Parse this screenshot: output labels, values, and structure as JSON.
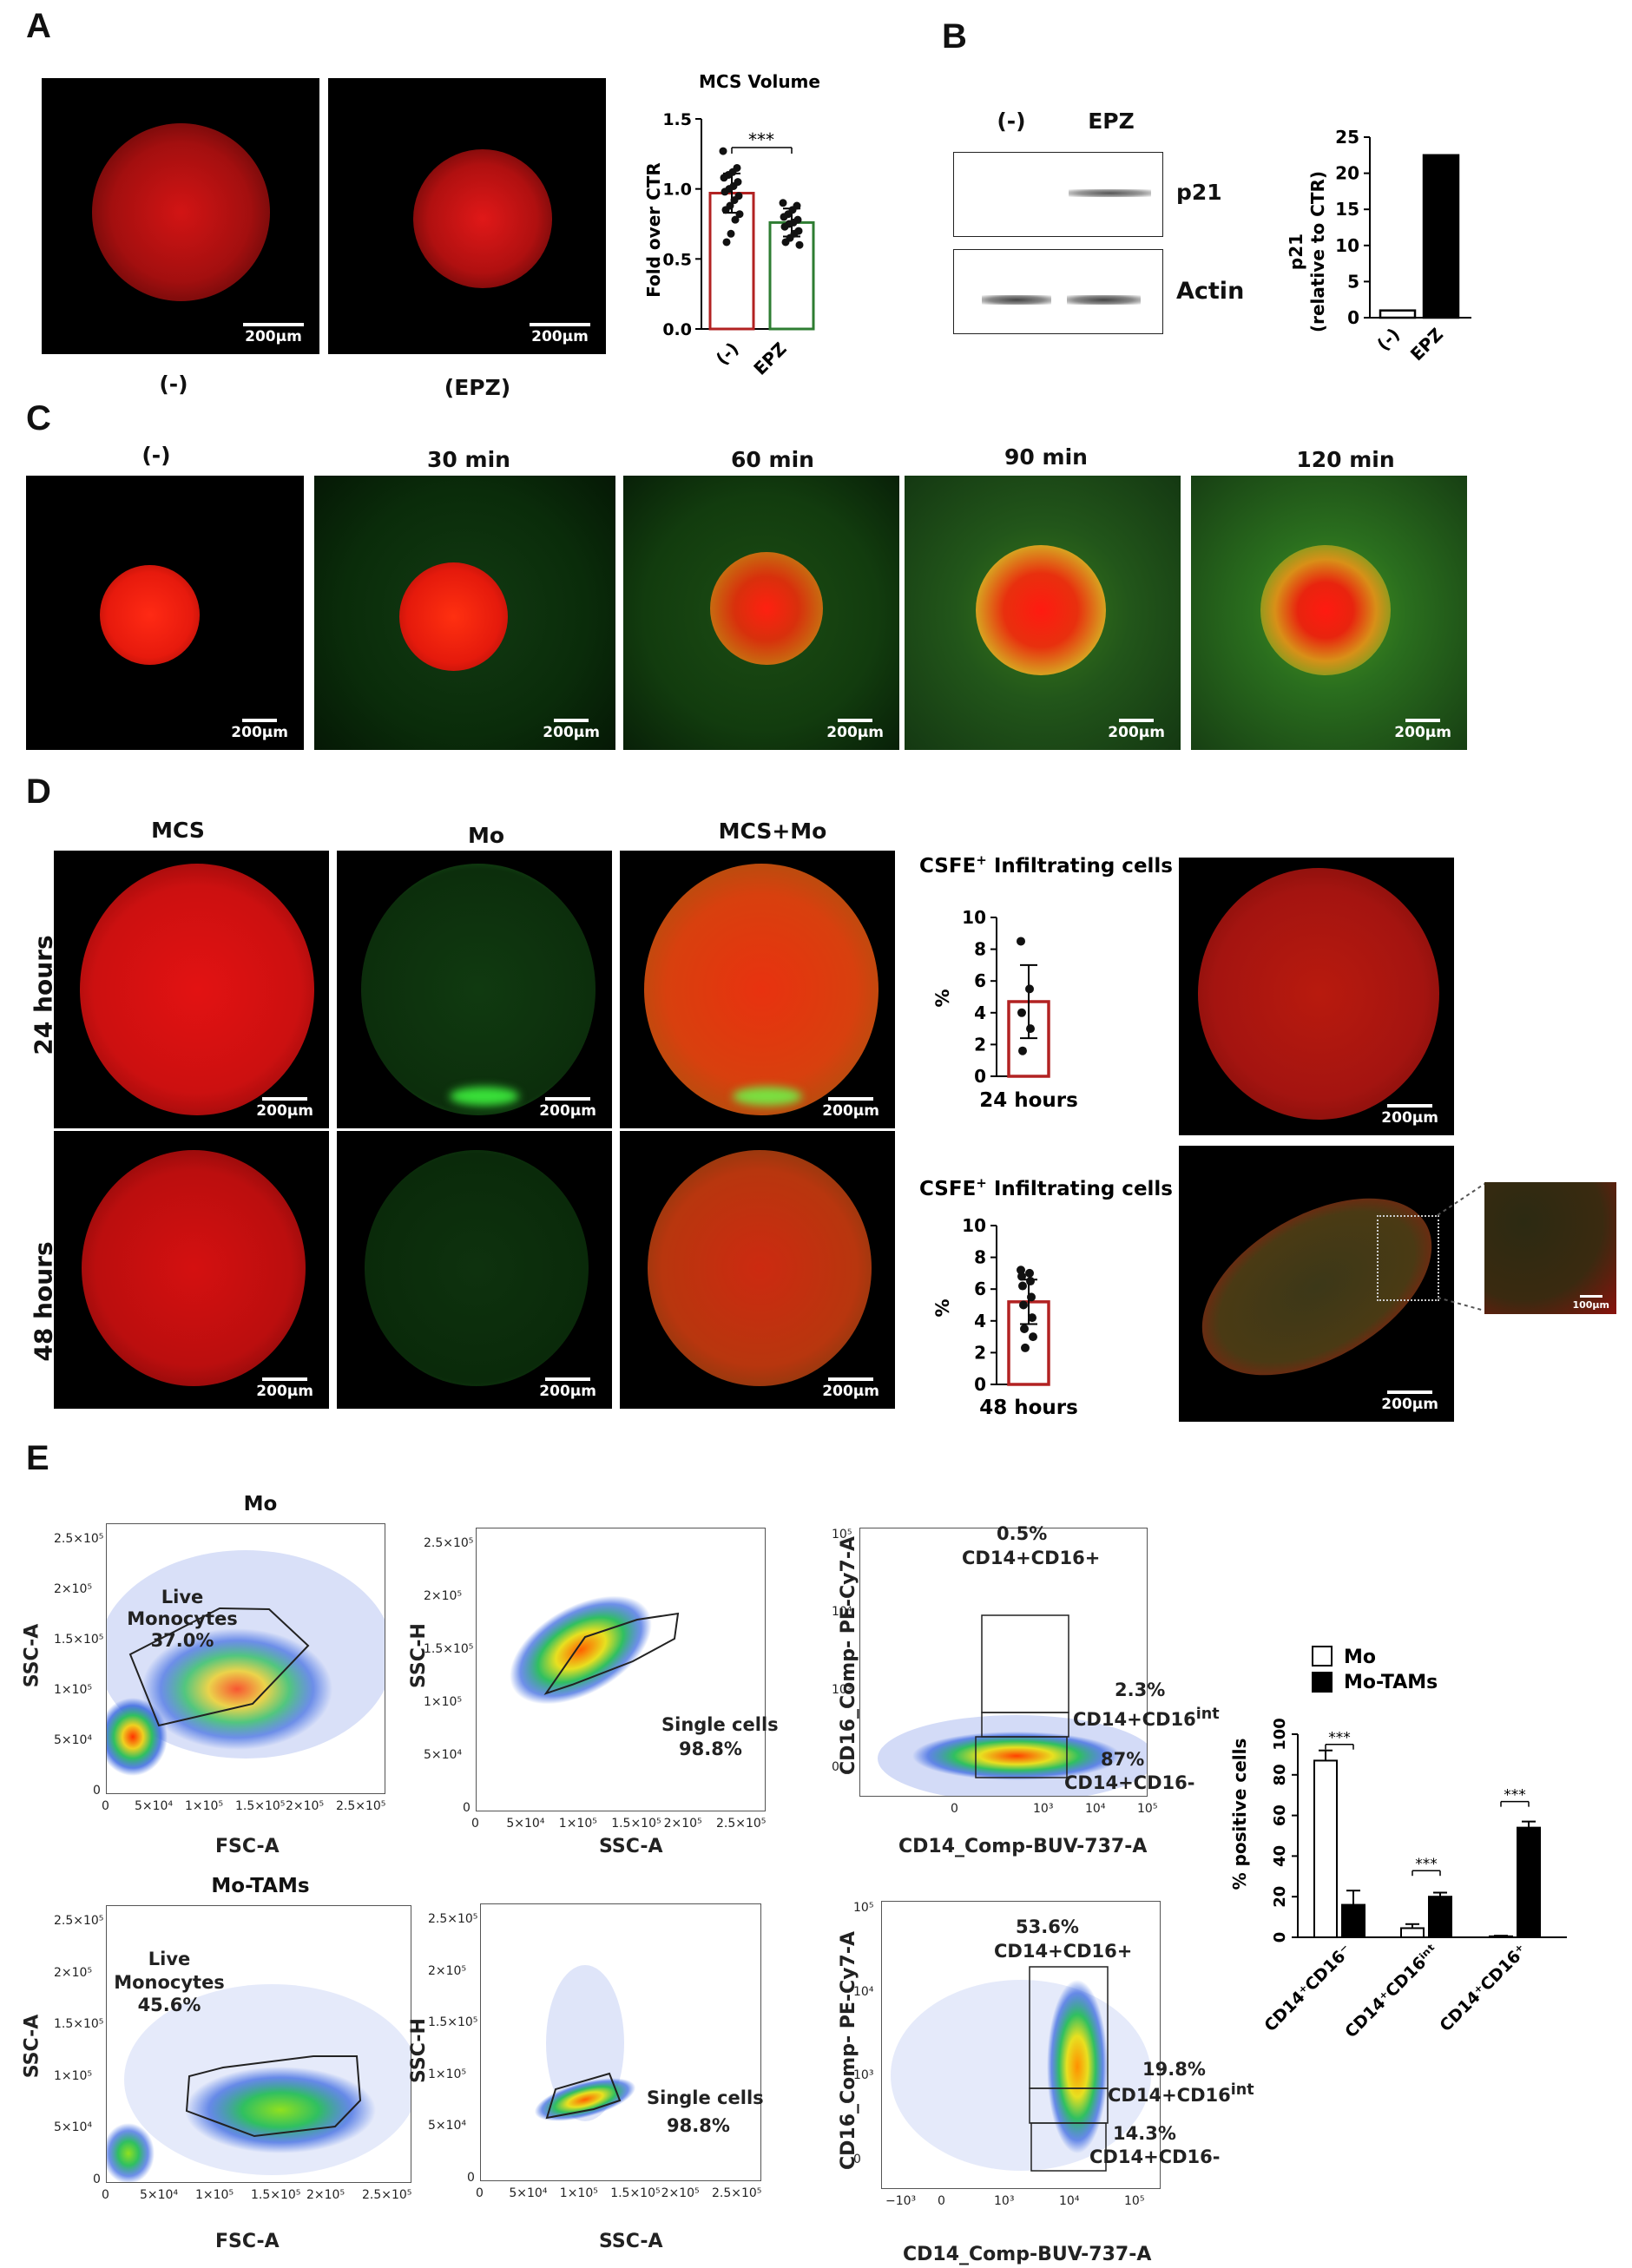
{
  "panels": {
    "a": "A",
    "b": "B",
    "c": "C",
    "d": "D",
    "e": "E"
  },
  "scale": {
    "s200": "200µm",
    "s100": "100µm"
  },
  "A": {
    "cond_ctrl": "(-)",
    "cond_epz": "(EPZ)",
    "chart_title": "MCS Volume",
    "ylabel": "Fold over CTR",
    "cat_ctrl": "(-)",
    "cat_epz": "EPZ",
    "sig": "***",
    "yticks": [
      "0.0",
      "0.5",
      "1.0",
      "1.5"
    ]
  },
  "B": {
    "lane_ctrl": "(-)",
    "lane_epz": "EPZ",
    "band1": "p21",
    "band2": "Actin",
    "ylabel1": "p21",
    "ylabel2": "(relative to CTR)",
    "cat_ctrl": "(-)",
    "cat_epz": "EPZ",
    "yticks": [
      "0",
      "5",
      "10",
      "15",
      "20",
      "25"
    ]
  },
  "C": {
    "times": [
      "(-)",
      "30 min",
      "60 min",
      "90 min",
      "120 min"
    ]
  },
  "D": {
    "cols": [
      "MCS",
      "Mo",
      "MCS+Mo"
    ],
    "row1": "24 hours",
    "row2": "48 hours",
    "chart_title": "CSFE",
    "chart_title_sup": "+",
    "chart_title_rest": " Infiltrating cells",
    "ylabel": "%",
    "yticks": [
      "0",
      "2",
      "4",
      "6",
      "8",
      "10"
    ],
    "x1": "24 hours",
    "x2": "48 hours"
  },
  "E": {
    "mo_title": "Mo",
    "motam_title": "Mo-TAMs",
    "live": "Live",
    "monocytes": "Monocytes",
    "mo_live_pct": "37.0%",
    "motam_live_pct": "45.6%",
    "single": "Single cells",
    "single_pct": "98.8%",
    "ssc_a": "SSC-A",
    "ssc_h": "SSC-H",
    "fsc_a": "FSC-A",
    "cd16_axis": "CD16_Comp- PE-Cy7-A",
    "cd14_axis": "CD14_Comp-BUV-737-A",
    "mo_gate1_pct": "0.5%",
    "mo_gate2_pct": "2.3%",
    "mo_gate3_pct": "87%",
    "motam_gate1_pct": "53.6%",
    "motam_gate2_pct": "19.8%",
    "motam_gate3_pct": "14.3%",
    "gate1": "CD14+CD16+",
    "gate2_base": "CD14+CD16",
    "gate2_sup": "int",
    "gate3": "CD14+CD16-",
    "lin_ticks": [
      "0",
      "5×10⁴",
      "1×10⁵",
      "1.5×10⁵",
      "2×10⁵",
      "2.5×10⁵"
    ],
    "log_ticks_y": [
      "0",
      "10³",
      "10⁴",
      "10⁵"
    ],
    "log_ticks_x1": [
      "0",
      "10³",
      "10⁴",
      "10⁵"
    ],
    "log_ticks_x2": [
      "−10³",
      "0",
      "10³",
      "10⁴",
      "10⁵"
    ],
    "bar_legend": [
      "Mo",
      "Mo-TAMs"
    ],
    "bar_ylabel": "% positive cells",
    "bar_yticks": [
      "0",
      "20",
      "40",
      "60",
      "80",
      "100"
    ],
    "bar_cats": [
      "CD14⁺CD16⁻",
      "CD14⁺CD16ⁱⁿᵗ",
      "CD14⁺CD16⁺"
    ],
    "sig": "***"
  },
  "chart_data": [
    {
      "type": "bar",
      "title": "MCS Volume",
      "ylabel": "Fold over CTR",
      "categories": [
        "(-)",
        "EPZ"
      ],
      "values": [
        0.97,
        0.76
      ],
      "errors": [
        0.14,
        0.1
      ],
      "ylim": [
        0,
        1.5
      ],
      "points": [
        [
          1.27,
          1.15,
          1.12,
          1.1,
          1.08,
          1.05,
          1.02,
          1.0,
          0.98,
          0.95,
          0.92,
          0.88,
          0.85,
          0.82,
          0.78,
          0.68,
          0.62
        ],
        [
          0.9,
          0.88,
          0.85,
          0.82,
          0.8,
          0.78,
          0.76,
          0.75,
          0.73,
          0.7,
          0.68,
          0.65,
          0.62,
          0.6
        ]
      ],
      "colors": [
        "#b22222",
        "#2e7d32"
      ]
    },
    {
      "type": "bar",
      "ylabel": "p21 (relative to CTR)",
      "categories": [
        "(-)",
        "EPZ"
      ],
      "values": [
        1,
        22.5
      ],
      "ylim": [
        0,
        25
      ]
    },
    {
      "type": "bar",
      "title": "CSFE+ Infiltrating cells",
      "ylabel": "%",
      "categories": [
        "24 hours"
      ],
      "values": [
        4.7
      ],
      "errors": [
        2.3
      ],
      "points": [
        [
          8.5,
          5.5,
          4.0,
          3.0,
          1.6
        ]
      ],
      "ylim": [
        0,
        10
      ]
    },
    {
      "type": "bar",
      "title": "CSFE+ Infiltrating cells",
      "ylabel": "%",
      "categories": [
        "48 hours"
      ],
      "values": [
        5.2
      ],
      "errors": [
        1.4
      ],
      "points": [
        [
          7.2,
          7.0,
          6.8,
          6.5,
          6.2,
          5.5,
          5.0,
          4.2,
          3.5,
          3.0,
          2.3
        ]
      ],
      "ylim": [
        0,
        10
      ]
    },
    {
      "type": "bar",
      "ylabel": "% positive cells",
      "categories": [
        "CD14⁺CD16⁻",
        "CD14⁺CD16ⁱⁿᵗ",
        "CD14⁺CD16⁺"
      ],
      "series": [
        {
          "name": "Mo",
          "values": [
            87,
            4.5,
            0.5
          ],
          "errors": [
            5,
            2,
            0.3
          ]
        },
        {
          "name": "Mo-TAMs",
          "values": [
            16,
            20,
            54
          ],
          "errors": [
            7,
            2,
            3
          ]
        }
      ],
      "ylim": [
        0,
        100
      ]
    }
  ]
}
